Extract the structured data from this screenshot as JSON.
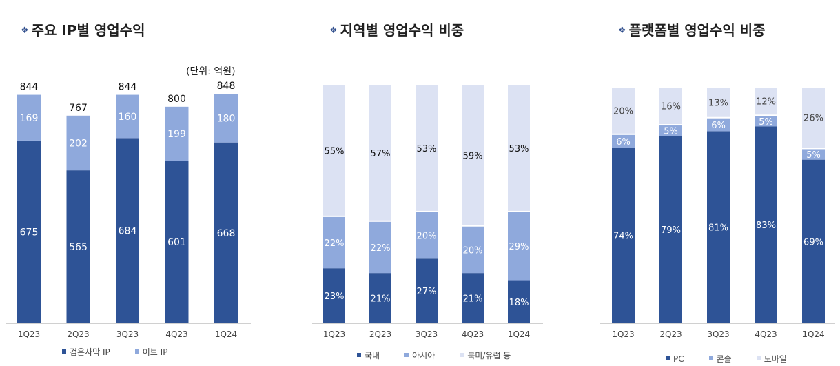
{
  "panels": [
    {
      "title": "주요 IP별 영업수익",
      "unit": "(단위: 억원)"
    },
    {
      "title": "지역별 영업수익 비중"
    },
    {
      "title": "플랫폼별 영업수익 비중"
    }
  ],
  "colors": {
    "dark": "#2e5396",
    "mid": "#8fa9dc",
    "light": "#dce2f3",
    "bullet": "#2b4a8a"
  },
  "chart_data": [
    {
      "type": "bar",
      "stacked": true,
      "title": "주요 IP별 영업수익",
      "unit": "(단위: 억원)",
      "categories": [
        "1Q23",
        "2Q23",
        "3Q23",
        "4Q23",
        "1Q24"
      ],
      "series": [
        {
          "name": "검은사막 IP",
          "values": [
            675,
            565,
            684,
            601,
            668
          ],
          "label_color": "#ffffff"
        },
        {
          "name": "이브 IP",
          "values": [
            169,
            202,
            160,
            199,
            180
          ],
          "label_color": "#ffffff"
        }
      ],
      "totals": [
        844,
        767,
        844,
        800,
        848
      ],
      "ylim": [
        0,
        848
      ]
    },
    {
      "type": "bar",
      "stacked": true,
      "percent": true,
      "title": "지역별 영업수익 비중",
      "categories": [
        "1Q23",
        "2Q23",
        "3Q23",
        "4Q23",
        "1Q24"
      ],
      "series": [
        {
          "name": "국내",
          "values": [
            23,
            21,
            27,
            21,
            18
          ],
          "label_color": "#ffffff"
        },
        {
          "name": "아시아",
          "values": [
            22,
            22,
            20,
            20,
            29
          ],
          "label_color": "#ffffff"
        },
        {
          "name": "북미/유럽 등",
          "values": [
            55,
            57,
            53,
            59,
            53
          ],
          "label_color": "#111111"
        }
      ],
      "ylim": [
        0,
        100
      ]
    },
    {
      "type": "bar",
      "stacked": true,
      "percent": true,
      "title": "플랫폼별 영업수익 비중",
      "categories": [
        "1Q23",
        "2Q23",
        "3Q23",
        "4Q23",
        "1Q24"
      ],
      "series": [
        {
          "name": "PC",
          "values": [
            74,
            79,
            81,
            83,
            69
          ],
          "label_color": "#ffffff"
        },
        {
          "name": "콘솔",
          "values": [
            6,
            5,
            6,
            5,
            5
          ],
          "label_color": "#ffffff"
        },
        {
          "name": "모바일",
          "values": [
            20,
            16,
            13,
            12,
            26
          ],
          "label_color": "#444444"
        }
      ],
      "ylim": [
        0,
        100
      ]
    }
  ]
}
